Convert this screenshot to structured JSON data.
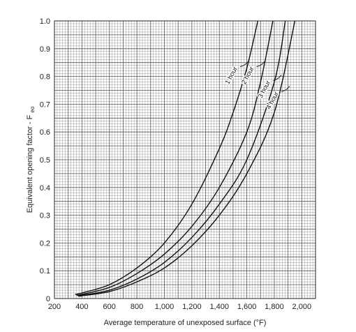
{
  "chart_data": {
    "type": "line",
    "xlabel": "Average temperature of unexposed surface (°F)",
    "ylabel_main": "Equivalent opening factor - F",
    "ylabel_sub": "eo",
    "xlim": [
      200,
      2100
    ],
    "ylim": [
      0,
      1.0
    ],
    "x_ticks": [
      200,
      400,
      600,
      800,
      1000,
      1200,
      1400,
      1600,
      1800,
      2000
    ],
    "x_tick_labels": [
      "200",
      "400",
      "600",
      "800",
      "1,000",
      "1,200",
      "1,400",
      "1,600",
      "1,800",
      "2,000"
    ],
    "y_ticks": [
      0,
      0.1,
      0.2,
      0.3,
      0.4,
      0.5,
      0.6,
      0.7,
      0.8,
      0.9,
      1.0
    ],
    "y_tick_labels": [
      "0",
      "0.1",
      "0.2",
      "0.3",
      "0.4",
      "0.5",
      "0.6",
      "0.7",
      "0.8",
      "0.9",
      "1.0"
    ],
    "grid": true,
    "series": [
      {
        "name": "1 hour",
        "x": [
          350,
          400,
          600,
          800,
          1000,
          1200,
          1400,
          1500,
          1600,
          1680
        ],
        "y": [
          0.015,
          0.02,
          0.05,
          0.11,
          0.2,
          0.34,
          0.54,
          0.67,
          0.83,
          1.0
        ]
      },
      {
        "name": "2 hour",
        "x": [
          360,
          400,
          600,
          800,
          1000,
          1200,
          1400,
          1600,
          1700,
          1790
        ],
        "y": [
          0.012,
          0.015,
          0.04,
          0.09,
          0.16,
          0.26,
          0.4,
          0.6,
          0.78,
          1.0
        ]
      },
      {
        "name": "3 hour",
        "x": [
          370,
          400,
          600,
          800,
          1000,
          1200,
          1400,
          1600,
          1800,
          1880
        ],
        "y": [
          0.01,
          0.012,
          0.03,
          0.07,
          0.13,
          0.22,
          0.34,
          0.5,
          0.78,
          1.0
        ]
      },
      {
        "name": "4 hour",
        "x": [
          380,
          400,
          600,
          800,
          1000,
          1200,
          1400,
          1600,
          1800,
          1950
        ],
        "y": [
          0.008,
          0.01,
          0.025,
          0.06,
          0.11,
          0.19,
          0.3,
          0.45,
          0.67,
          1.0
        ]
      }
    ],
    "label_points": [
      {
        "x": 1500,
        "y": 0.8,
        "text": "1 hour"
      },
      {
        "x": 1620,
        "y": 0.8,
        "text": "2 hour"
      },
      {
        "x": 1740,
        "y": 0.75,
        "text": "3 hour"
      },
      {
        "x": 1800,
        "y": 0.71,
        "text": "4 hour"
      }
    ]
  }
}
